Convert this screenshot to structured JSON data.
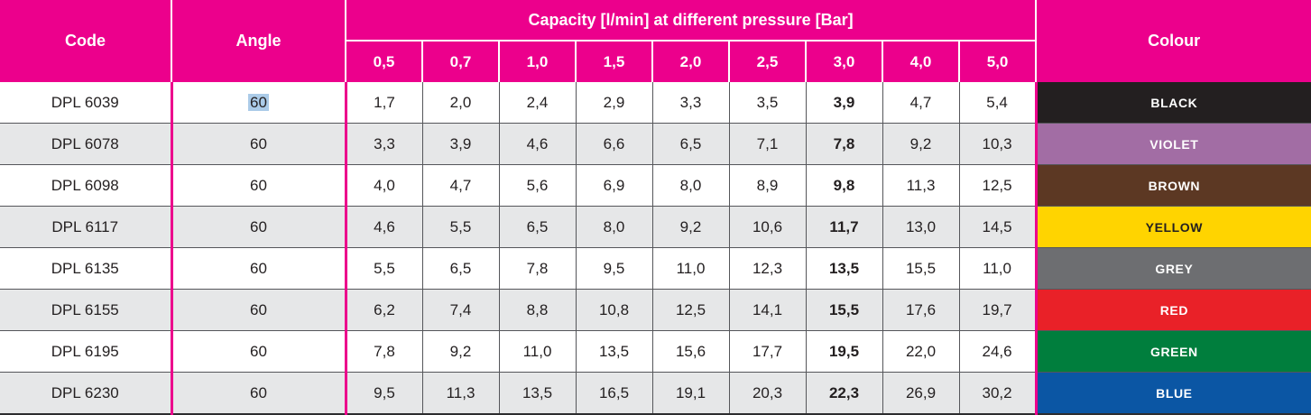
{
  "accent_color": "#EC008C",
  "highlight_color": "#ABCBE8",
  "stripe_color": "#E6E7E8",
  "table": {
    "headers": {
      "code": "Code",
      "angle": "Angle",
      "capacity_group": "Capacity [l/min] at different pressure [Bar]",
      "pressures": [
        "0,5",
        "0,7",
        "1,0",
        "1,5",
        "2,0",
        "2,5",
        "3,0",
        "4,0",
        "5,0"
      ],
      "colour": "Colour"
    },
    "bold_pressure_column": "3,0",
    "rows": [
      {
        "code": "DPL 6039",
        "angle": "60",
        "angle_highlighted": true,
        "values": [
          "1,7",
          "2,0",
          "2,4",
          "2,9",
          "3,3",
          "3,5",
          "3,9",
          "4,7",
          "5,4"
        ],
        "colour": {
          "label": "BLACK",
          "bg": "#231F20",
          "text": "#FFFFFF"
        }
      },
      {
        "code": "DPL 6078",
        "angle": "60",
        "angle_highlighted": false,
        "values": [
          "3,3",
          "3,9",
          "4,6",
          "6,6",
          "6,5",
          "7,1",
          "7,8",
          "9,2",
          "10,3"
        ],
        "colour": {
          "label": "VIOLET",
          "bg": "#A26DA4",
          "text": "#FFFFFF"
        }
      },
      {
        "code": "DPL 6098",
        "angle": "60",
        "angle_highlighted": false,
        "values": [
          "4,0",
          "4,7",
          "5,6",
          "6,9",
          "8,0",
          "8,9",
          "9,8",
          "11,3",
          "12,5"
        ],
        "colour": {
          "label": "BROWN",
          "bg": "#5C3823",
          "text": "#FFFFFF"
        }
      },
      {
        "code": "DPL 6117",
        "angle": "60",
        "angle_highlighted": false,
        "values": [
          "4,6",
          "5,5",
          "6,5",
          "8,0",
          "9,2",
          "10,6",
          "11,7",
          "13,0",
          "14,5"
        ],
        "colour": {
          "label": "YELLOW",
          "bg": "#FFD400",
          "text": "#231F20"
        }
      },
      {
        "code": "DPL 6135",
        "angle": "60",
        "angle_highlighted": false,
        "values": [
          "5,5",
          "6,5",
          "7,8",
          "9,5",
          "11,0",
          "12,3",
          "13,5",
          "15,5",
          "11,0"
        ],
        "colour": {
          "label": "GREY",
          "bg": "#6D6E71",
          "text": "#FFFFFF"
        }
      },
      {
        "code": "DPL 6155",
        "angle": "60",
        "angle_highlighted": false,
        "values": [
          "6,2",
          "7,4",
          "8,8",
          "10,8",
          "12,5",
          "14,1",
          "15,5",
          "17,6",
          "19,7"
        ],
        "colour": {
          "label": "RED",
          "bg": "#E92128",
          "text": "#FFFFFF"
        }
      },
      {
        "code": "DPL 6195",
        "angle": "60",
        "angle_highlighted": false,
        "values": [
          "7,8",
          "9,2",
          "11,0",
          "13,5",
          "15,6",
          "17,7",
          "19,5",
          "22,0",
          "24,6"
        ],
        "colour": {
          "label": "GREEN",
          "bg": "#007E3D",
          "text": "#FFFFFF"
        }
      },
      {
        "code": "DPL 6230",
        "angle": "60",
        "angle_highlighted": false,
        "values": [
          "9,5",
          "11,3",
          "13,5",
          "16,5",
          "19,1",
          "20,3",
          "22,3",
          "26,9",
          "30,2"
        ],
        "colour": {
          "label": "BLUE",
          "bg": "#0B56A4",
          "text": "#FFFFFF"
        }
      }
    ]
  }
}
